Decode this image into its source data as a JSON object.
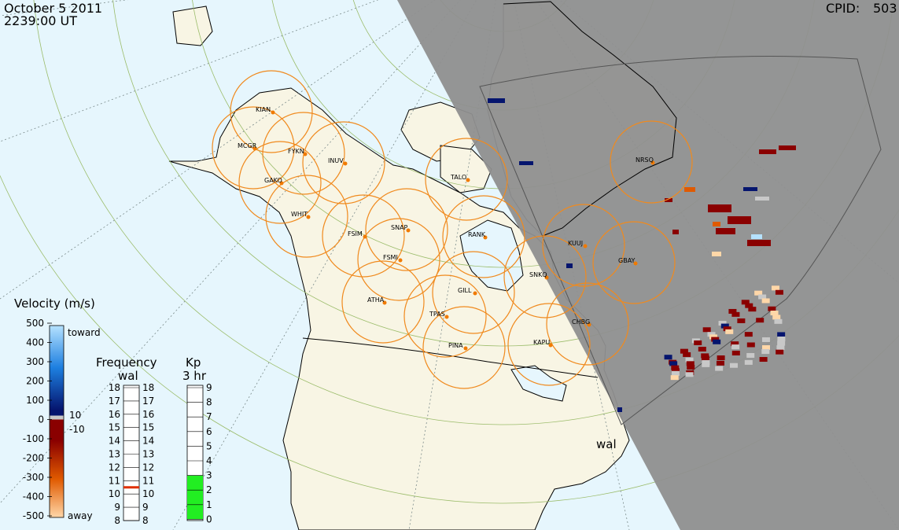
{
  "header": {
    "date": "October  5 2011",
    "time": "2239:00 UT",
    "cpid_label": "CPID:",
    "cpid_value": "503"
  },
  "stations": [
    {
      "code": "KIAN"
    },
    {
      "code": "MCGR"
    },
    {
      "code": "FYKN"
    },
    {
      "code": "INUV"
    },
    {
      "code": "GAKO"
    },
    {
      "code": "WHIT"
    },
    {
      "code": "FSIM"
    },
    {
      "code": "SNAP"
    },
    {
      "code": "FSMI"
    },
    {
      "code": "RANK"
    },
    {
      "code": "TALO"
    },
    {
      "code": "NRSQ"
    },
    {
      "code": "KUUJ"
    },
    {
      "code": "GBAY"
    },
    {
      "code": "SNKQ"
    },
    {
      "code": "ATHA"
    },
    {
      "code": "GILL"
    },
    {
      "code": "TPAS"
    },
    {
      "code": "CHBG"
    },
    {
      "code": "KAPU"
    },
    {
      "code": "PINA"
    }
  ],
  "radar_label": "wal",
  "velocity_scale": {
    "title": "Velocity (m/s)",
    "ticks": [
      "500",
      "400",
      "300",
      "200",
      "100",
      "0",
      "-100",
      "-200",
      "-300",
      "-400",
      "-500"
    ],
    "toward": "toward",
    "away": "away",
    "plus_label": "10",
    "minus_label": "-10",
    "colors": {
      "toward_light": "#b5e2ff",
      "toward_mid": "#1d7fe0",
      "toward_dark": "#05156e",
      "zero": "#c8c8c8",
      "away_dark": "#8a0000",
      "away_mid": "#e05a00",
      "away_light": "#ffd7a8"
    }
  },
  "frequency_scale": {
    "title": "Frequency",
    "radar": "wal",
    "ticks": [
      "18",
      "17",
      "16",
      "15",
      "14",
      "13",
      "12",
      "11",
      "10",
      "9",
      "8"
    ],
    "current_mhz": 10.5,
    "marker_color": "#e03000"
  },
  "kp_scale": {
    "title": "Kp",
    "subtitle": "3 hr",
    "ticks": [
      "9",
      "8",
      "7",
      "6",
      "5",
      "4",
      "3",
      "2",
      "1",
      "0"
    ],
    "value": 3,
    "fill_color": "#22ee22"
  },
  "colors": {
    "ocean": "#e6f6fd",
    "land": "#f8f5e4",
    "night": "#8f8f8f",
    "coast": "#000000",
    "fov_circle": "#f08a1e",
    "station_dot": "#f07a00"
  }
}
